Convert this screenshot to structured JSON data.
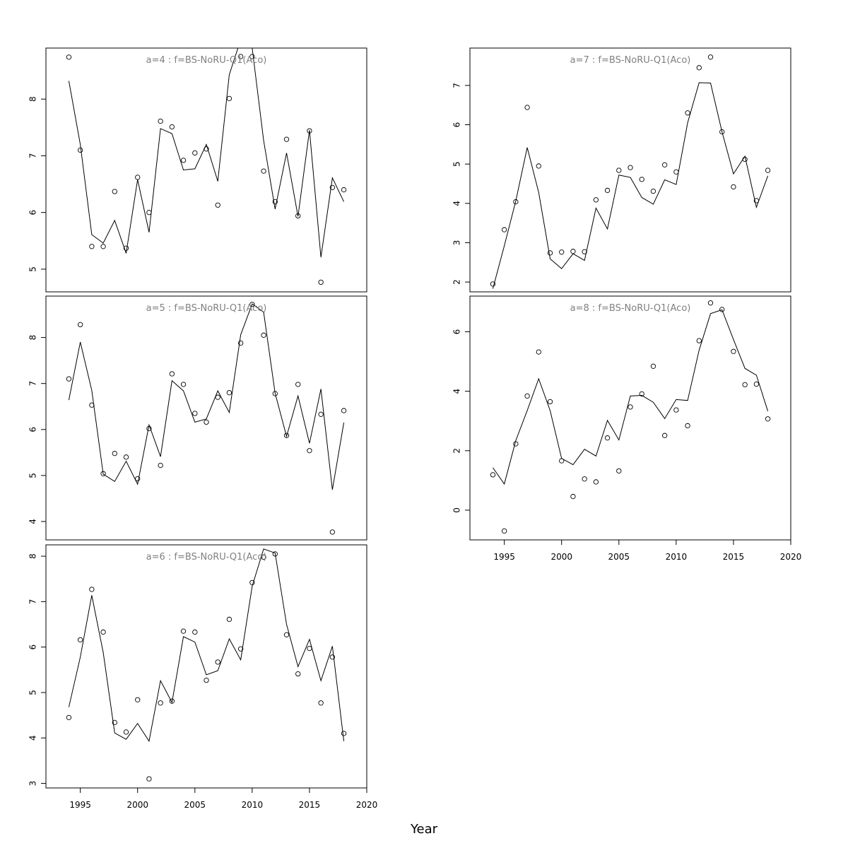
{
  "figure": {
    "xlabel": "Year",
    "background": "#ffffff",
    "line_color": "#000000",
    "title_color": "#808080"
  },
  "chart_data": [
    {
      "type": "line",
      "title": "a=4  :  f=BS-NoRU-Q1(Aco)",
      "x_ticks": [],
      "y_ticks": [
        5,
        6,
        7,
        8
      ],
      "xlim": [
        1992,
        2020
      ],
      "ylim": [
        4.6,
        8.9
      ],
      "series": [
        {
          "kind": "points",
          "x": [
            1994,
            1995,
            1996,
            1997,
            1998,
            1999,
            2000,
            2001,
            2002,
            2003,
            2004,
            2005,
            2006,
            2007,
            2008,
            2009,
            2010,
            2011,
            2012,
            2013,
            2014,
            2015,
            2016,
            2017,
            2018
          ],
          "y": [
            8.74,
            7.1,
            5.4,
            5.4,
            6.37,
            5.37,
            6.62,
            6.0,
            7.61,
            7.51,
            6.92,
            7.05,
            7.12,
            6.13,
            8.01,
            8.75,
            8.75,
            6.73,
            6.19,
            7.29,
            5.94,
            7.44,
            4.77,
            6.44,
            6.4
          ]
        },
        {
          "kind": "line",
          "x": [
            1994,
            1995,
            1996,
            1997,
            1998,
            1999,
            2000,
            2001,
            2002,
            2003,
            2004,
            2005,
            2006,
            2007,
            2008,
            2009,
            2010,
            2011,
            2012,
            2013,
            2014,
            2015,
            2016,
            2017,
            2018
          ],
          "y": [
            8.32,
            7.2,
            5.61,
            5.46,
            5.86,
            5.28,
            6.58,
            5.65,
            7.48,
            7.39,
            6.75,
            6.77,
            7.2,
            6.55,
            8.43,
            9.05,
            8.9,
            7.27,
            6.06,
            7.05,
            5.93,
            7.45,
            5.21,
            6.61,
            6.19
          ]
        }
      ]
    },
    {
      "type": "line",
      "title": "a=7  :  f=BS-NoRU-Q1(Aco)",
      "x_ticks": [],
      "y_ticks": [
        2,
        3,
        4,
        5,
        6,
        7
      ],
      "xlim": [
        1992,
        2020
      ],
      "ylim": [
        1.75,
        7.95
      ],
      "series": [
        {
          "kind": "points",
          "x": [
            1994,
            1995,
            1996,
            1997,
            1998,
            1999,
            2000,
            2001,
            2002,
            2003,
            2004,
            2005,
            2006,
            2007,
            2008,
            2009,
            2010,
            2011,
            2012,
            2013,
            2014,
            2015,
            2016,
            2017,
            2018
          ],
          "y": [
            1.95,
            3.33,
            4.04,
            6.44,
            4.95,
            2.74,
            2.76,
            2.78,
            2.77,
            4.09,
            4.33,
            4.84,
            4.91,
            4.61,
            4.31,
            4.98,
            4.8,
            6.3,
            7.45,
            7.72,
            5.82,
            4.42,
            5.12,
            4.07,
            4.84
          ]
        },
        {
          "kind": "line",
          "x": [
            1994,
            1995,
            1996,
            1997,
            1998,
            1999,
            2000,
            2001,
            2002,
            2003,
            2004,
            2005,
            2006,
            2007,
            2008,
            2009,
            2010,
            2011,
            2012,
            2013,
            2014,
            2015,
            2016,
            2017,
            2018
          ],
          "y": [
            1.83,
            2.92,
            4.06,
            5.42,
            4.28,
            2.59,
            2.34,
            2.72,
            2.55,
            3.88,
            3.35,
            4.72,
            4.66,
            4.15,
            3.98,
            4.6,
            4.48,
            6.05,
            7.07,
            7.06,
            5.82,
            4.75,
            5.2,
            3.9,
            4.7
          ]
        }
      ]
    },
    {
      "type": "line",
      "title": "a=5  :  f=BS-NoRU-Q1(Aco)",
      "x_ticks": [],
      "y_ticks": [
        4,
        5,
        6,
        7,
        8
      ],
      "xlim": [
        1992,
        2020
      ],
      "ylim": [
        3.6,
        8.9
      ],
      "series": [
        {
          "kind": "points",
          "x": [
            1994,
            1995,
            1996,
            1997,
            1998,
            1999,
            2000,
            2001,
            2002,
            2003,
            2004,
            2005,
            2006,
            2007,
            2008,
            2009,
            2010,
            2011,
            2012,
            2013,
            2014,
            2015,
            2016,
            2017,
            2018
          ],
          "y": [
            7.1,
            8.28,
            6.53,
            5.04,
            5.48,
            5.4,
            4.93,
            6.02,
            5.22,
            7.21,
            6.98,
            6.35,
            6.16,
            6.7,
            6.8,
            7.88,
            8.72,
            8.05,
            6.78,
            5.87,
            6.98,
            5.54,
            6.33,
            3.77,
            6.41
          ]
        },
        {
          "kind": "line",
          "x": [
            1994,
            1995,
            1996,
            1997,
            1998,
            1999,
            2000,
            2001,
            2002,
            2003,
            2004,
            2005,
            2006,
            2007,
            2008,
            2009,
            2010,
            2011,
            2012,
            2013,
            2014,
            2015,
            2016,
            2017,
            2018
          ],
          "y": [
            6.64,
            7.9,
            6.85,
            5.03,
            4.87,
            5.31,
            4.81,
            6.1,
            5.41,
            7.06,
            6.84,
            6.16,
            6.23,
            6.84,
            6.37,
            8.06,
            8.73,
            8.55,
            6.79,
            5.85,
            6.73,
            5.7,
            6.88,
            4.69,
            6.15
          ]
        }
      ]
    },
    {
      "type": "line",
      "title": "a=8  :  f=BS-NoRU-Q1(Aco)",
      "x_ticks": [
        1995,
        2000,
        2005,
        2010,
        2015,
        2020
      ],
      "y_ticks": [
        0,
        2,
        4,
        6
      ],
      "xlim": [
        1992,
        2020
      ],
      "ylim": [
        -1.0,
        7.2
      ],
      "series": [
        {
          "kind": "points",
          "x": [
            1994,
            1995,
            1996,
            1997,
            1998,
            1999,
            2000,
            2001,
            2002,
            2003,
            2004,
            2005,
            2006,
            2007,
            2008,
            2009,
            2010,
            2011,
            2012,
            2013,
            2014,
            2015,
            2016,
            2017,
            2018
          ],
          "y": [
            1.19,
            -0.7,
            2.23,
            3.84,
            5.32,
            3.65,
            1.66,
            0.46,
            1.05,
            0.95,
            2.43,
            1.32,
            3.47,
            3.91,
            4.84,
            2.51,
            3.37,
            2.84,
            5.7,
            6.97,
            6.75,
            5.34,
            4.22,
            4.24,
            3.07
          ]
        },
        {
          "kind": "line",
          "x": [
            1994,
            1995,
            1996,
            1997,
            1998,
            1999,
            2000,
            2001,
            2002,
            2003,
            2004,
            2005,
            2006,
            2007,
            2008,
            2009,
            2010,
            2011,
            2012,
            2013,
            2014,
            2015,
            2016,
            2017,
            2018
          ],
          "y": [
            1.43,
            0.88,
            2.34,
            3.35,
            4.42,
            3.35,
            1.74,
            1.53,
            2.05,
            1.82,
            3.02,
            2.36,
            3.84,
            3.86,
            3.63,
            3.08,
            3.72,
            3.69,
            5.38,
            6.61,
            6.74,
            5.74,
            4.77,
            4.54,
            3.33
          ]
        }
      ]
    },
    {
      "type": "line",
      "title": "a=6  :  f=BS-NoRU-Q1(Aco)",
      "x_ticks": [
        1995,
        2000,
        2005,
        2010,
        2015,
        2020
      ],
      "y_ticks": [
        3,
        4,
        5,
        6,
        7,
        8
      ],
      "xlim": [
        1992,
        2020
      ],
      "ylim": [
        2.9,
        8.25
      ],
      "series": [
        {
          "kind": "points",
          "x": [
            1994,
            1995,
            1996,
            1997,
            1998,
            1999,
            2000,
            2001,
            2002,
            2003,
            2004,
            2005,
            2006,
            2007,
            2008,
            2009,
            2010,
            2011,
            2012,
            2013,
            2014,
            2015,
            2016,
            2017,
            2018
          ],
          "y": [
            4.45,
            6.16,
            7.27,
            6.33,
            4.34,
            4.13,
            4.84,
            3.1,
            4.77,
            4.81,
            6.35,
            6.33,
            5.27,
            5.67,
            6.61,
            5.96,
            7.42,
            7.98,
            8.05,
            6.27,
            5.41,
            5.97,
            4.77,
            5.78,
            4.1
          ]
        },
        {
          "kind": "line",
          "x": [
            1994,
            1995,
            1996,
            1997,
            1998,
            1999,
            2000,
            2001,
            2002,
            2003,
            2004,
            2005,
            2006,
            2007,
            2008,
            2009,
            2010,
            2011,
            2012,
            2013,
            2014,
            2015,
            2016,
            2017,
            2018
          ],
          "y": [
            4.68,
            5.78,
            7.14,
            5.88,
            4.11,
            3.97,
            4.32,
            3.93,
            5.26,
            4.78,
            6.23,
            6.11,
            5.39,
            5.48,
            6.18,
            5.72,
            7.34,
            8.16,
            8.07,
            6.5,
            5.57,
            6.17,
            5.26,
            6.02,
            3.93
          ]
        }
      ]
    }
  ]
}
